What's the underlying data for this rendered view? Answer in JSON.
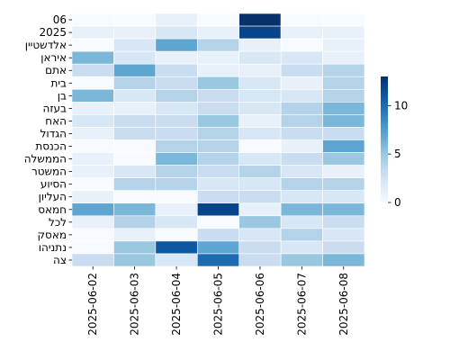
{
  "chart_data": {
    "type": "heatmap",
    "title": "",
    "xlabel": "",
    "ylabel": "",
    "x_categories": [
      "2025-06-02",
      "2025-06-03",
      "2025-06-04",
      "2025-06-05",
      "2025-06-06",
      "2025-06-07",
      "2025-06-08"
    ],
    "y_categories": [
      "06",
      "2025",
      "אלדשטיין",
      "איראן",
      "אתם",
      "בית",
      "בן",
      "בעזה",
      "האח",
      "הגדול",
      "הכנסת",
      "הממשלה",
      "המשטר",
      "הסיוע",
      "העליון",
      "חמאס",
      "לכל",
      "מאסק",
      "נתניהו",
      "צה"
    ],
    "values": [
      [
        0,
        0,
        1,
        0,
        13,
        0,
        0
      ],
      [
        1,
        1,
        2,
        1,
        12,
        1,
        1
      ],
      [
        0,
        2,
        7,
        4,
        1,
        0,
        1
      ],
      [
        6,
        2,
        1,
        1,
        2,
        2,
        1
      ],
      [
        3,
        7,
        3,
        1,
        1,
        3,
        4
      ],
      [
        0,
        4,
        3,
        5,
        2,
        1,
        4
      ],
      [
        6,
        2,
        4,
        3,
        2,
        2,
        4
      ],
      [
        1,
        1,
        2,
        3,
        2,
        4,
        6
      ],
      [
        2,
        3,
        3,
        5,
        1,
        4,
        6
      ],
      [
        1,
        3,
        3,
        4,
        2,
        3,
        3
      ],
      [
        0,
        0,
        4,
        4,
        0,
        1,
        7
      ],
      [
        1,
        0,
        6,
        4,
        2,
        3,
        5
      ],
      [
        1,
        2,
        4,
        3,
        4,
        2,
        1
      ],
      [
        0,
        4,
        4,
        2,
        2,
        4,
        4
      ],
      [
        1,
        0,
        0,
        3,
        3,
        2,
        2
      ],
      [
        7,
        6,
        1,
        12,
        1,
        6,
        6
      ],
      [
        1,
        4,
        2,
        0,
        5,
        2,
        3
      ],
      [
        0,
        1,
        0,
        3,
        2,
        4,
        2
      ],
      [
        0,
        5,
        11,
        7,
        3,
        2,
        3
      ],
      [
        3,
        5,
        2,
        10,
        3,
        5,
        6
      ]
    ],
    "colorbar": {
      "min": 0,
      "max": 13,
      "ticks": [
        0,
        5,
        10
      ]
    },
    "colormap": [
      "#f7fbff",
      "#deebf7",
      "#c6dbef",
      "#9ecae1",
      "#6baed6",
      "#4292c6",
      "#2171b5",
      "#08519c",
      "#08306b"
    ],
    "grid": true,
    "legend": "colorbar-right"
  }
}
